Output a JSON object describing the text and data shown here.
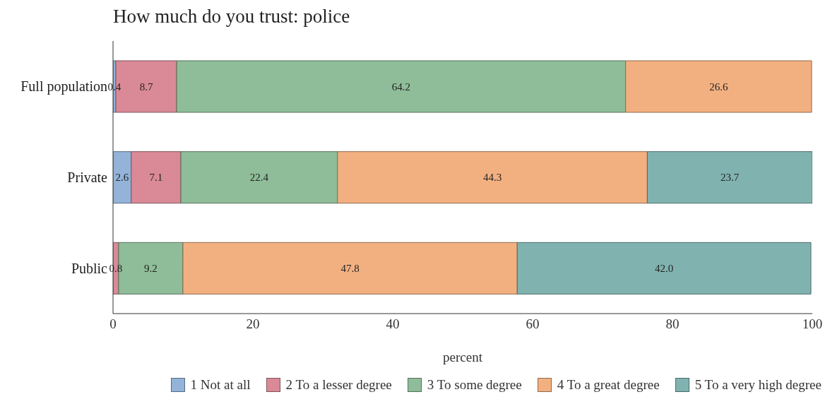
{
  "chart_data": {
    "type": "bar",
    "orientation": "horizontal",
    "stacked": true,
    "title": "How much do you trust: police",
    "xlabel": "percent",
    "categories": [
      "Full population",
      "Private",
      "Public"
    ],
    "series": [
      {
        "name": "1 Not at all",
        "color": "#93b3d8",
        "values": [
          0.4,
          2.6,
          null
        ],
        "value_labels": [
          "0.4",
          "2.6",
          null
        ]
      },
      {
        "name": "2 To a lesser degree",
        "color": "#d98a96",
        "values": [
          8.7,
          7.1,
          0.8
        ],
        "value_labels": [
          "8.7",
          "7.1",
          "0.8"
        ]
      },
      {
        "name": "3 To some degree",
        "color": "#8fbd99",
        "values": [
          64.2,
          22.4,
          9.2
        ],
        "value_labels": [
          "64.2",
          "22.4",
          "9.2"
        ]
      },
      {
        "name": "4 To a great degree",
        "color": "#f2b081",
        "values": [
          26.6,
          44.3,
          47.8
        ],
        "value_labels": [
          "26.6",
          "44.3",
          "47.8"
        ]
      },
      {
        "name": "5 To a very high degree",
        "color": "#80b3b0",
        "values": [
          null,
          23.7,
          42.0
        ],
        "value_labels": [
          null,
          "23.7",
          "42.0"
        ]
      }
    ],
    "xlim": [
      0,
      100
    ],
    "xticks": [
      0,
      20,
      40,
      60,
      80,
      100
    ],
    "grid": false,
    "legend": "bottom"
  }
}
